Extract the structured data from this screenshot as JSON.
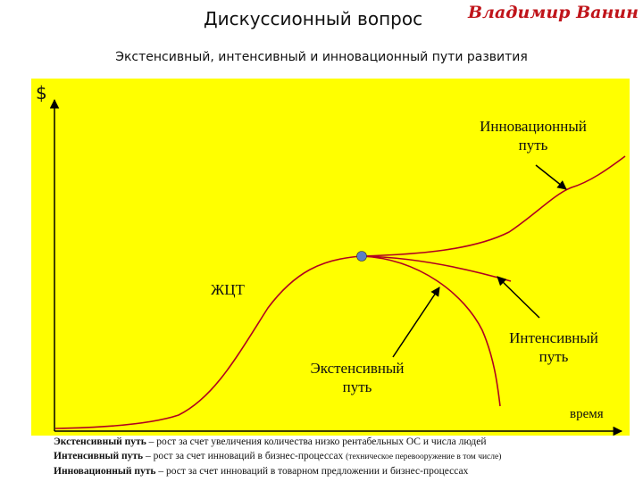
{
  "header": {
    "title": "Дискуссионный вопрос",
    "author": "Владимир Ванин",
    "subtitle": "Экстенсивный, интенсивный и инновационный пути развития"
  },
  "diagram": {
    "y_axis_label": "$",
    "x_axis_label": "время",
    "curve_label": "ЖЦТ",
    "innovative_label_l1": "Инновационный",
    "innovative_label_l2": "путь",
    "intensive_label_l1": "Интенсивный",
    "intensive_label_l2": "путь",
    "extensive_label_l1": "Экстенсивный",
    "extensive_label_l2": "путь",
    "colors": {
      "panel": "#ffff00",
      "curve": "#b00020",
      "point": "#5b7fc4",
      "arrow": "#000000"
    }
  },
  "notes": {
    "line1_term": "Экстенсивный путь",
    "line1_text": " – рост за счет увеличения количества низко рентабельных ОС и числа людей",
    "line2_term": "Интенсивный путь",
    "line2_text": " – рост за счет инноваций в бизнес-процессах ",
    "line2_small": "(техническое перевооружение в том числе)",
    "line3_term": "Инновационный путь",
    "line3_text": " – рост за счет инноваций в товарном предложении и бизнес-процессах"
  }
}
